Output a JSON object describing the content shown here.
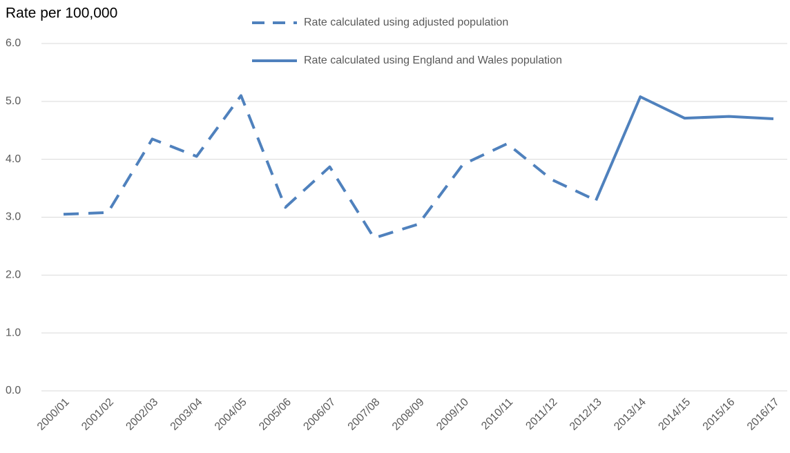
{
  "chart_data": {
    "type": "line",
    "y_label": "Rate per 100,000",
    "categories": [
      "2000/01",
      "2001/02",
      "2002/03",
      "2003/04",
      "2004/05",
      "2005/06",
      "2006/07",
      "2007/08",
      "2008/09",
      "2009/10",
      "2010/11",
      "2011/12",
      "2012/13",
      "2013/14",
      "2014/15",
      "2015/16",
      "2016/17"
    ],
    "series": [
      {
        "name": "Rate calculated using adjusted population",
        "color": "#4f81bd",
        "dash": true,
        "values": [
          3.05,
          3.08,
          4.35,
          4.05,
          5.1,
          3.17,
          3.87,
          2.64,
          2.88,
          3.91,
          4.27,
          3.65,
          3.29,
          null,
          null,
          null,
          null
        ]
      },
      {
        "name": "Rate calculated using England and Wales population",
        "color": "#4f81bd",
        "dash": false,
        "values": [
          null,
          null,
          null,
          null,
          null,
          null,
          null,
          null,
          null,
          null,
          null,
          null,
          3.29,
          5.08,
          4.71,
          4.74,
          4.7
        ]
      }
    ],
    "ylim": [
      0,
      6
    ],
    "yticks": [
      {
        "value": 0,
        "label": "0.0"
      },
      {
        "value": 1,
        "label": "1.0"
      },
      {
        "value": 2,
        "label": "2.0"
      },
      {
        "value": 3,
        "label": "3.0"
      },
      {
        "value": 4,
        "label": "4.0"
      },
      {
        "value": 5,
        "label": "5.0"
      },
      {
        "value": 6,
        "label": "6.0"
      }
    ],
    "grid": true
  }
}
